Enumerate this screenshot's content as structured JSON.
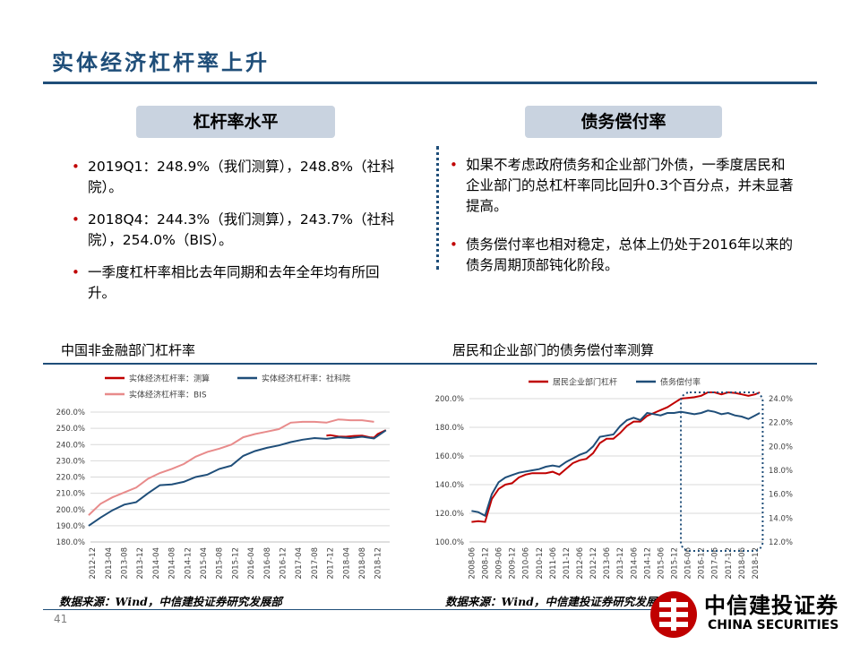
{
  "slide_title": "实体经济杠杆率上升",
  "page_number": "41",
  "left_section": {
    "heading": "杠杆率水平",
    "bullets": [
      "2019Q1：248.9%（我们测算），248.8%（社科院）。",
      "2018Q4：244.3%（我们测算），243.7%（社科院），254.0%（BIS）。",
      "一季度杠杆率相比去年同期和去年全年均有所回升。"
    ]
  },
  "right_section": {
    "heading": "债务偿付率",
    "bullets": [
      "如果不考虑政府债务和企业部门外债，一季度居民和企业部门的总杠杆率同比回升0.3个百分点，并未显著提高。",
      "债务偿付率也相对稳定，总体上仍处于2016年以来的债务周期顶部钝化阶段。"
    ]
  },
  "sources": {
    "left": "数据来源：Wind，中信建投证券研究发展部",
    "right": "数据来源：Wind，中信建投证券研究发展部"
  },
  "logo": {
    "cn": "中信建投证券",
    "en": "CHINA SECURITIES",
    "icon": "china-securities-logo-icon"
  },
  "colors": {
    "navy": "#1f4e79",
    "red": "#c00000",
    "pink": "#e88b8b",
    "dark_blue": "#1f4e79",
    "pill_bg": "#c9d3e0"
  },
  "chart_data": [
    {
      "type": "line",
      "title": "中国非金融部门杠杆率",
      "x": [
        "2012-12",
        "2013-04",
        "2013-08",
        "2013-12",
        "2014-04",
        "2014-08",
        "2014-12",
        "2015-04",
        "2015-08",
        "2015-12",
        "2016-04",
        "2016-08",
        "2016-12",
        "2017-04",
        "2017-08",
        "2017-12",
        "2018-04",
        "2018-08",
        "2018-12"
      ],
      "ylim": [
        180,
        260
      ],
      "yticks": [
        "180.0%",
        "190.0%",
        "200.0%",
        "210.0%",
        "220.0%",
        "230.0%",
        "240.0%",
        "250.0%",
        "260.0%"
      ],
      "grid": true,
      "legend_position": "top",
      "series": [
        {
          "name": "实体经济杠杆率：测算",
          "color": "#c00000",
          "points": [
            [
              2017.92,
              245.5
            ],
            [
              2018.0,
              245.8
            ],
            [
              2018.17,
              245.0
            ],
            [
              2018.33,
              244.8
            ],
            [
              2018.5,
              245.3
            ],
            [
              2018.67,
              245.5
            ],
            [
              2018.83,
              244.5
            ],
            [
              2018.92,
              244.3
            ],
            [
              2019.0,
              246.5
            ],
            [
              2019.17,
              248.9
            ]
          ]
        },
        {
          "name": "实体经济杠杆率：社科院",
          "color": "#1f4e79",
          "points": [
            [
              2012.92,
              190.0
            ],
            [
              2013.17,
              195.0
            ],
            [
              2013.42,
              199.5
            ],
            [
              2013.67,
              203.0
            ],
            [
              2013.92,
              204.5
            ],
            [
              2014.17,
              210.0
            ],
            [
              2014.42,
              215.0
            ],
            [
              2014.67,
              215.5
            ],
            [
              2014.92,
              217.0
            ],
            [
              2015.17,
              220.0
            ],
            [
              2015.42,
              221.5
            ],
            [
              2015.67,
              225.0
            ],
            [
              2015.92,
              227.0
            ],
            [
              2016.17,
              233.0
            ],
            [
              2016.42,
              236.0
            ],
            [
              2016.67,
              238.0
            ],
            [
              2016.92,
              239.5
            ],
            [
              2017.17,
              241.5
            ],
            [
              2017.42,
              243.0
            ],
            [
              2017.67,
              244.0
            ],
            [
              2017.92,
              243.5
            ],
            [
              2018.17,
              244.5
            ],
            [
              2018.42,
              244.0
            ],
            [
              2018.67,
              244.8
            ],
            [
              2018.92,
              243.7
            ],
            [
              2019.17,
              248.8
            ]
          ]
        },
        {
          "name": "实体经济杠杆率：BIS",
          "color": "#e88b8b",
          "points": [
            [
              2012.92,
              196.5
            ],
            [
              2013.17,
              203.5
            ],
            [
              2013.42,
              207.5
            ],
            [
              2013.67,
              210.5
            ],
            [
              2013.92,
              213.5
            ],
            [
              2014.17,
              219.0
            ],
            [
              2014.42,
              222.5
            ],
            [
              2014.67,
              225.0
            ],
            [
              2014.92,
              228.0
            ],
            [
              2015.17,
              232.5
            ],
            [
              2015.42,
              235.5
            ],
            [
              2015.67,
              237.5
            ],
            [
              2015.92,
              240.0
            ],
            [
              2016.17,
              244.5
            ],
            [
              2016.42,
              246.5
            ],
            [
              2016.67,
              248.0
            ],
            [
              2016.92,
              249.5
            ],
            [
              2017.17,
              253.5
            ],
            [
              2017.42,
              254.0
            ],
            [
              2017.67,
              254.0
            ],
            [
              2017.92,
              253.5
            ],
            [
              2018.17,
              255.5
            ],
            [
              2018.42,
              255.0
            ],
            [
              2018.67,
              255.0
            ],
            [
              2018.92,
              254.0
            ]
          ]
        }
      ]
    },
    {
      "type": "line",
      "title": "居民和企业部门的债务偿付率测算",
      "x": [
        "2008-06",
        "2008-12",
        "2009-06",
        "2009-12",
        "2010-06",
        "2010-12",
        "2011-06",
        "2011-12",
        "2012-06",
        "2012-12",
        "2013-06",
        "2013-12",
        "2014-06",
        "2014-12",
        "2015-06",
        "2015-12",
        "2016-06",
        "2016-12",
        "2017-06",
        "2017-12",
        "2018-06",
        "2018-12"
      ],
      "ylim_left": [
        100,
        200
      ],
      "ylim_right": [
        12,
        24
      ],
      "yticks_left": [
        "100.0%",
        "120.0%",
        "140.0%",
        "160.0%",
        "180.0%",
        "200.0%"
      ],
      "yticks_right": [
        "12.0%",
        "14.0%",
        "16.0%",
        "18.0%",
        "20.0%",
        "22.0%",
        "24.0%"
      ],
      "grid": true,
      "legend_position": "top",
      "annotation": "dotted-highlight-box-2016-2019",
      "series": [
        {
          "name": "居民企业部门杠杆",
          "color": "#c00000",
          "axis": "left",
          "points": [
            [
              2008.5,
              114
            ],
            [
              2008.75,
              114.5
            ],
            [
              2009.0,
              114
            ],
            [
              2009.25,
              130
            ],
            [
              2009.5,
              137
            ],
            [
              2009.75,
              140
            ],
            [
              2010.0,
              141
            ],
            [
              2010.25,
              145
            ],
            [
              2010.5,
              147
            ],
            [
              2010.75,
              148
            ],
            [
              2011.0,
              148
            ],
            [
              2011.25,
              148
            ],
            [
              2011.5,
              149
            ],
            [
              2011.75,
              147
            ],
            [
              2012.0,
              151
            ],
            [
              2012.25,
              155
            ],
            [
              2012.5,
              157
            ],
            [
              2012.75,
              158
            ],
            [
              2013.0,
              162
            ],
            [
              2013.25,
              169
            ],
            [
              2013.5,
              172
            ],
            [
              2013.75,
              172
            ],
            [
              2014.0,
              176
            ],
            [
              2014.25,
              181
            ],
            [
              2014.5,
              184
            ],
            [
              2014.75,
              184
            ],
            [
              2015.0,
              188
            ],
            [
              2015.25,
              190
            ],
            [
              2015.5,
              192
            ],
            [
              2015.75,
              194
            ],
            [
              2016.0,
              197
            ],
            [
              2016.25,
              200
            ],
            [
              2016.5,
              200.5
            ],
            [
              2016.75,
              201
            ],
            [
              2017.0,
              202
            ],
            [
              2017.25,
              205
            ],
            [
              2017.5,
              204.5
            ],
            [
              2017.75,
              203
            ],
            [
              2018.0,
              205
            ],
            [
              2018.25,
              204
            ],
            [
              2018.5,
              203
            ],
            [
              2018.75,
              202
            ],
            [
              2019.0,
              203
            ],
            [
              2019.17,
              207
            ]
          ]
        },
        {
          "name": "债务偿付率",
          "color": "#1f4e79",
          "axis": "right",
          "points": [
            [
              2008.5,
              14.6
            ],
            [
              2008.75,
              14.5
            ],
            [
              2009.0,
              14.2
            ],
            [
              2009.25,
              16.0
            ],
            [
              2009.5,
              17.0
            ],
            [
              2009.75,
              17.4
            ],
            [
              2010.0,
              17.6
            ],
            [
              2010.25,
              17.8
            ],
            [
              2010.5,
              17.9
            ],
            [
              2010.75,
              18.0
            ],
            [
              2011.0,
              18.1
            ],
            [
              2011.25,
              18.3
            ],
            [
              2011.5,
              18.4
            ],
            [
              2011.75,
              18.3
            ],
            [
              2012.0,
              18.7
            ],
            [
              2012.25,
              19.0
            ],
            [
              2012.5,
              19.3
            ],
            [
              2012.75,
              19.5
            ],
            [
              2013.0,
              20.0
            ],
            [
              2013.25,
              20.8
            ],
            [
              2013.5,
              20.9
            ],
            [
              2013.75,
              21.0
            ],
            [
              2014.0,
              21.7
            ],
            [
              2014.25,
              22.2
            ],
            [
              2014.5,
              22.4
            ],
            [
              2014.75,
              22.2
            ],
            [
              2015.0,
              22.8
            ],
            [
              2015.25,
              22.7
            ],
            [
              2015.5,
              22.6
            ],
            [
              2015.75,
              22.8
            ],
            [
              2016.0,
              22.8
            ],
            [
              2016.25,
              22.9
            ],
            [
              2016.5,
              22.8
            ],
            [
              2016.75,
              22.7
            ],
            [
              2017.0,
              22.8
            ],
            [
              2017.25,
              23.0
            ],
            [
              2017.5,
              22.9
            ],
            [
              2017.75,
              22.7
            ],
            [
              2018.0,
              22.8
            ],
            [
              2018.25,
              22.6
            ],
            [
              2018.5,
              22.5
            ],
            [
              2018.75,
              22.3
            ],
            [
              2019.0,
              22.6
            ],
            [
              2019.17,
              22.8
            ]
          ]
        }
      ]
    }
  ]
}
